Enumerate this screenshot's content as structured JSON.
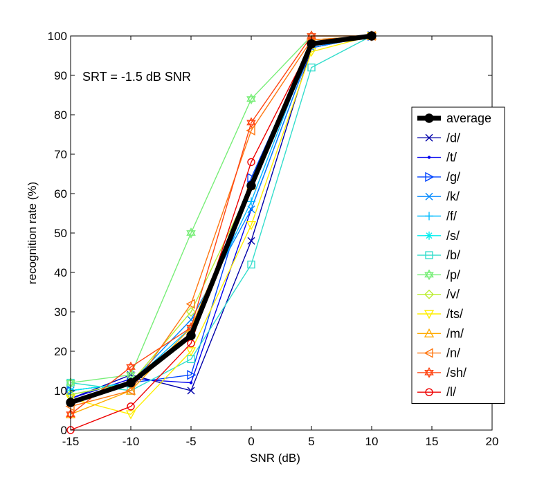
{
  "chart_data": {
    "type": "line",
    "title": "",
    "xlabel": "SNR (dB)",
    "ylabel": "recognition rate (%)",
    "xlim": [
      -15,
      20
    ],
    "ylim": [
      0,
      100
    ],
    "xticks": [
      -15,
      -10,
      -5,
      0,
      5,
      10,
      15,
      20
    ],
    "yticks": [
      0,
      10,
      20,
      30,
      40,
      50,
      60,
      70,
      80,
      90,
      100
    ],
    "x": [
      -15,
      -10,
      -5,
      0,
      5,
      10
    ],
    "grid": false,
    "legend_position": "right",
    "annotation": "SRT = -1.5 dB SNR",
    "series": [
      {
        "name": "average",
        "color": "#000000",
        "marker": "circle-filled",
        "linewidth": 7,
        "values": [
          7,
          12,
          24,
          62,
          98,
          100
        ]
      },
      {
        "name": "/d/",
        "color": "#0000aa",
        "marker": "x",
        "values": [
          8,
          14,
          10,
          48,
          97,
          100
        ]
      },
      {
        "name": "/t/",
        "color": "#0000ee",
        "marker": "dot",
        "values": [
          8,
          13,
          12,
          56,
          97,
          100
        ]
      },
      {
        "name": "/g/",
        "color": "#0044ff",
        "marker": "triangle-right",
        "values": [
          10,
          12,
          14,
          64,
          98,
          100
        ]
      },
      {
        "name": "/k/",
        "color": "#0088ff",
        "marker": "x",
        "values": [
          10,
          12,
          28,
          56,
          97,
          100
        ]
      },
      {
        "name": "/f/",
        "color": "#00bbff",
        "marker": "plus",
        "values": [
          9,
          12,
          26,
          58,
          98,
          100
        ]
      },
      {
        "name": "/s/",
        "color": "#00eeee",
        "marker": "asterisk",
        "values": [
          10,
          12,
          24,
          62,
          98,
          100
        ]
      },
      {
        "name": "/b/",
        "color": "#33ddcc",
        "marker": "square",
        "values": [
          12,
          10,
          18,
          42,
          92,
          100
        ]
      },
      {
        "name": "/p/",
        "color": "#77ee77",
        "marker": "hexagram",
        "values": [
          12,
          14,
          50,
          84,
          100,
          100
        ]
      },
      {
        "name": "/v/",
        "color": "#bbee33",
        "marker": "diamond",
        "values": [
          9,
          12,
          30,
          62,
          99,
          100
        ]
      },
      {
        "name": "/ts/",
        "color": "#ffee00",
        "marker": "triangle-down",
        "values": [
          8,
          4,
          20,
          52,
          96,
          100
        ]
      },
      {
        "name": "/m/",
        "color": "#ffaa00",
        "marker": "triangle-up",
        "values": [
          4,
          10,
          26,
          62,
          99,
          100
        ]
      },
      {
        "name": "/n/",
        "color": "#ff7711",
        "marker": "triangle-left",
        "values": [
          6,
          10,
          32,
          76,
          99,
          100
        ]
      },
      {
        "name": "/sh/",
        "color": "#ff4411",
        "marker": "hexagram",
        "values": [
          4,
          16,
          26,
          78,
          100,
          100
        ]
      },
      {
        "name": "/l/",
        "color": "#ee0000",
        "marker": "circle",
        "values": [
          0,
          6,
          22,
          68,
          98,
          100
        ]
      }
    ]
  }
}
